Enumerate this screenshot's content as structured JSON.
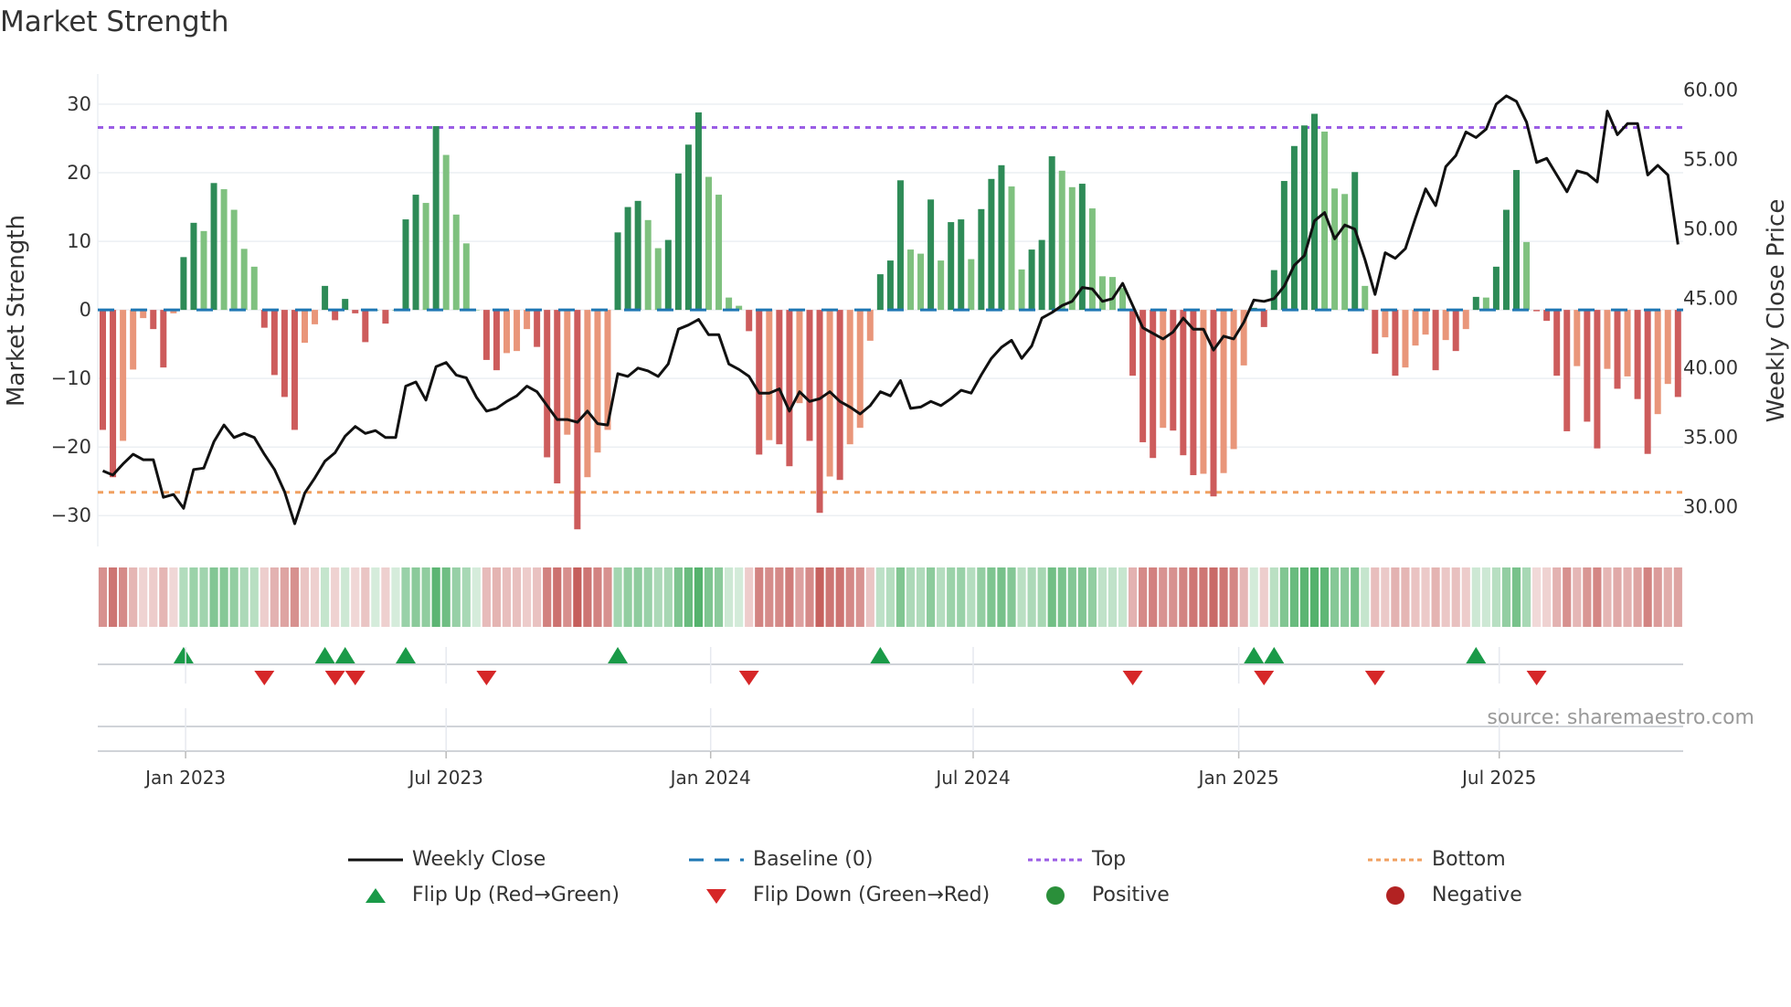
{
  "title": "Market Strength",
  "source": "source: sharemaestro.com",
  "colors": {
    "strong_up": "#2e8b57",
    "weak_up": "#7fc17f",
    "strong_down": "#cd5c5c",
    "weak_down": "#e9967a",
    "price": "#111111",
    "baseline": "#1f77b4",
    "top": "#9b5de5",
    "bottom": "#f0a060",
    "flip_up": "#1a9a48",
    "flip_down": "#d62728",
    "positive": "#2a8f3a",
    "negative": "#b22222"
  },
  "chart_data": {
    "type": "bar",
    "title": "Market Strength",
    "ylabel": "Market Strength",
    "y2label": "Weekly Close Price",
    "ylim": [
      -34.5,
      34.4
    ],
    "y2lim": [
      27.06,
      61.07
    ],
    "yticks": [
      {
        "value": 30,
        "label": "30"
      },
      {
        "value": 20,
        "label": "20"
      },
      {
        "value": 10,
        "label": "10"
      },
      {
        "value": 0,
        "label": "0"
      },
      {
        "value": -10,
        "label": "−10"
      },
      {
        "value": -20,
        "label": "−20"
      },
      {
        "value": -30,
        "label": "−30"
      }
    ],
    "y2ticks": [
      {
        "value": 60,
        "label": "60.00"
      },
      {
        "value": 55,
        "label": "55.00"
      },
      {
        "value": 50,
        "label": "50.00"
      },
      {
        "value": 45,
        "label": "45.00"
      },
      {
        "value": 40,
        "label": "40.00"
      },
      {
        "value": 35,
        "label": "35.00"
      },
      {
        "value": 30,
        "label": "30.00"
      }
    ],
    "xticks": [
      {
        "week": 8.2,
        "label": "Jan 2023"
      },
      {
        "week": 34,
        "label": "Jul 2023"
      },
      {
        "week": 60.2,
        "label": "Jan 2024"
      },
      {
        "week": 86.2,
        "label": "Jul 2024"
      },
      {
        "week": 112.5,
        "label": "Jan 2025"
      },
      {
        "week": 138.3,
        "label": "Jul 2025"
      }
    ],
    "top_level": 26.6,
    "bottom_level": -26.6,
    "baseline": 0,
    "strength": [
      -17.5,
      -24.4,
      -19.1,
      -8.7,
      -1.2,
      -2.8,
      -8.4,
      -0.5,
      7.7,
      12.7,
      11.5,
      18.5,
      17.6,
      14.6,
      8.9,
      6.3,
      -2.6,
      -9.5,
      -12.7,
      -17.5,
      -4.8,
      -2.1,
      3.5,
      -1.5,
      1.6,
      -0.5,
      -4.7,
      0,
      -2.0,
      0,
      13.2,
      16.8,
      15.6,
      26.8,
      22.6,
      13.9,
      9.7,
      0,
      -7.3,
      -8.8,
      -6.3,
      -6.0,
      -2.8,
      -5.4,
      -21.5,
      -25.3,
      -18.2,
      -32.0,
      -24.4,
      -20.8,
      -17.5,
      11.3,
      15.0,
      15.9,
      13.1,
      9.0,
      10.2,
      19.9,
      24.1,
      28.8,
      19.4,
      16.8,
      1.8,
      0.6,
      -3.1,
      -21.1,
      -19.0,
      -19.6,
      -22.8,
      -13.6,
      -19.1,
      -29.6,
      -24.3,
      -24.8,
      -19.6,
      -17.2,
      -4.5,
      5.2,
      7.2,
      18.9,
      8.8,
      8.2,
      16.1,
      7.2,
      12.8,
      13.2,
      7.4,
      14.7,
      19.1,
      21.1,
      18.0,
      5.9,
      8.8,
      10.2,
      22.4,
      20.3,
      17.9,
      18.4,
      14.8,
      4.9,
      4.8,
      3.2,
      -9.6,
      -19.3,
      -21.6,
      -17.2,
      -17.6,
      -21.2,
      -24.1,
      -23.9,
      -27.2,
      -23.8,
      -20.3,
      -8.1,
      0.3,
      -2.5,
      5.8,
      18.8,
      23.9,
      26.9,
      28.6,
      26.0,
      17.7,
      16.9,
      20.1,
      3.5,
      -6.4,
      -4.0,
      -9.6,
      -8.4,
      -5.2,
      -3.6,
      -8.8,
      -4.4,
      -6.0,
      -2.8,
      1.9,
      1.8,
      6.3,
      14.6,
      20.4,
      9.9,
      -0.2,
      -1.6,
      -9.6,
      -17.7,
      -8.2,
      -16.3,
      -20.2,
      -8.6,
      -11.5,
      -9.7,
      -13.0,
      -21.0,
      -15.2,
      -10.8,
      -12.7
    ],
    "weekly_close": [
      32.5,
      32.2,
      33.0,
      33.7,
      33.3,
      33.3,
      30.6,
      30.8,
      29.8,
      32.6,
      32.7,
      34.6,
      35.8,
      34.9,
      35.2,
      34.9,
      33.7,
      32.6,
      31.0,
      28.7,
      30.9,
      32.0,
      33.2,
      33.8,
      35.0,
      35.7,
      35.2,
      35.4,
      34.9,
      34.9,
      38.6,
      38.9,
      37.6,
      40.0,
      40.3,
      39.4,
      39.2,
      37.8,
      36.8,
      37.0,
      37.5,
      37.9,
      38.6,
      38.2,
      37.2,
      36.2,
      36.2,
      36.0,
      36.8,
      35.9,
      35.8,
      39.5,
      39.3,
      39.9,
      39.7,
      39.3,
      40.2,
      42.7,
      43.0,
      43.4,
      42.3,
      42.3,
      40.2,
      39.8,
      39.3,
      38.1,
      38.1,
      38.4,
      36.8,
      38.2,
      37.5,
      37.7,
      38.2,
      37.5,
      37.1,
      36.6,
      37.2,
      38.2,
      37.9,
      39.0,
      37.0,
      37.1,
      37.5,
      37.2,
      37.7,
      38.3,
      38.1,
      39.4,
      40.6,
      41.4,
      41.9,
      40.6,
      41.5,
      43.5,
      43.9,
      44.4,
      44.7,
      45.7,
      45.6,
      44.7,
      44.9,
      46.0,
      44.4,
      42.8,
      42.4,
      42.0,
      42.5,
      43.5,
      42.7,
      42.7,
      41.2,
      42.2,
      42.0,
      43.2,
      44.8,
      44.7,
      44.9,
      45.8,
      47.3,
      48.0,
      50.5,
      51.1,
      49.2,
      50.2,
      49.9,
      47.7,
      45.2,
      48.2,
      47.8,
      48.5,
      50.7,
      52.8,
      51.6,
      54.4,
      55.2,
      56.9,
      56.5,
      57.1,
      58.9,
      59.5,
      59.1,
      57.6,
      54.7,
      55.0,
      53.8,
      52.6,
      54.1,
      53.9,
      53.3,
      58.4,
      56.7,
      57.5,
      57.5,
      53.8,
      54.5,
      53.8,
      48.8
    ],
    "legend": {
      "placement": "bottom",
      "items": [
        {
          "key": "price",
          "label": "Weekly Close"
        },
        {
          "key": "baseline",
          "label": "Baseline (0)"
        },
        {
          "key": "top",
          "label": "Top"
        },
        {
          "key": "bottom",
          "label": "Bottom"
        },
        {
          "key": "flip_up",
          "label": "Flip Up (Red→Green)"
        },
        {
          "key": "flip_down",
          "label": "Flip Down (Green→Red)"
        },
        {
          "key": "positive",
          "label": "Positive"
        },
        {
          "key": "negative",
          "label": "Negative"
        }
      ]
    }
  }
}
